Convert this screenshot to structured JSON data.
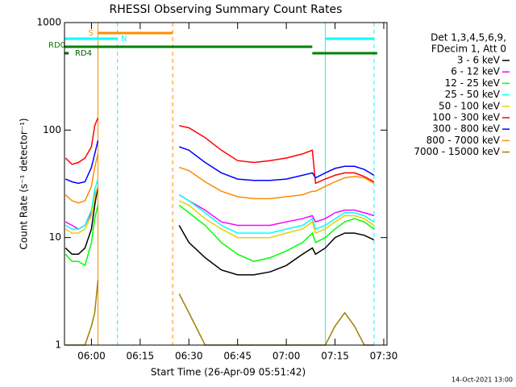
{
  "chart_data": {
    "type": "line",
    "title": "RHESSI Observing Summary Count Rates",
    "x_label": "Start Time (26-Apr-09 05:51:42)",
    "y_label": "Count Rate (s⁻¹ detector⁻¹)",
    "legend_header": [
      "Det 1,3,4,5,6,9,",
      "FDecim 1, Att 0"
    ],
    "footer": "14-Oct-2021 13:00",
    "log_y": true,
    "xlim": [
      "05:51:42",
      "07:31"
    ],
    "xticks": [
      "06:00",
      "06:15",
      "06:30",
      "06:45",
      "07:00",
      "07:15",
      "07:30"
    ],
    "ylim": [
      1,
      1000
    ],
    "yticks": [
      1,
      10,
      100,
      1000
    ],
    "x": [
      "05:52",
      "05:54",
      "05:56",
      "05:58",
      "06:00",
      "06:01",
      "06:02",
      "06:14",
      "06:27",
      "06:30",
      "06:35",
      "06:40",
      "06:45",
      "06:50",
      "06:55",
      "07:00",
      "07:05",
      "07:08",
      "07:09",
      "07:12",
      "07:15",
      "07:18",
      "07:21",
      "07:24",
      "07:27"
    ],
    "series": [
      {
        "name": "3 - 6 keV",
        "color": "#000000",
        "values": [
          8,
          7,
          7,
          8,
          12,
          20,
          30,
          null,
          13,
          9,
          6.5,
          5,
          4.5,
          4.5,
          4.8,
          5.5,
          7,
          8,
          7,
          8,
          10,
          11,
          11,
          10.5,
          9.5
        ]
      },
      {
        "name": "6 - 12 keV",
        "color": "#ff00ff",
        "values": [
          14,
          13,
          12,
          13,
          17,
          25,
          30,
          null,
          25,
          22,
          18,
          14,
          13,
          13,
          13,
          14,
          15,
          16,
          14,
          15,
          17,
          18,
          18,
          17,
          16
        ]
      },
      {
        "name": "12 - 25 keV",
        "color": "#00ff00",
        "values": [
          7,
          6,
          6,
          5.5,
          9,
          15,
          20,
          null,
          20,
          17,
          13,
          9,
          7,
          6,
          6.5,
          7.5,
          9,
          11,
          9,
          10,
          12,
          14,
          15,
          14,
          12
        ]
      },
      {
        "name": "25 - 50 keV",
        "color": "#00ffff",
        "values": [
          13,
          12,
          12,
          13,
          18,
          28,
          35,
          null,
          25,
          22,
          17,
          13,
          11,
          11,
          11,
          12,
          13,
          15,
          12,
          13,
          15,
          17,
          17,
          16,
          14
        ]
      },
      {
        "name": "50 - 100 keV",
        "color": "#e8d000",
        "values": [
          12,
          11,
          11,
          12,
          16,
          24,
          30,
          null,
          22,
          20,
          15,
          12,
          10,
          10,
          10,
          11,
          12,
          14,
          11,
          12,
          14,
          16,
          16,
          15,
          13
        ]
      },
      {
        "name": "100 - 300 keV",
        "color": "#ff0000",
        "values": [
          55,
          48,
          50,
          55,
          70,
          110,
          130,
          null,
          110,
          105,
          85,
          65,
          52,
          50,
          52,
          55,
          60,
          65,
          32,
          35,
          38,
          40,
          40,
          37,
          33
        ]
      },
      {
        "name": "300 - 800 keV",
        "color": "#0000ff",
        "values": [
          35,
          33,
          32,
          33,
          45,
          60,
          80,
          null,
          70,
          65,
          50,
          40,
          35,
          34,
          34,
          35,
          38,
          40,
          36,
          40,
          44,
          46,
          46,
          43,
          38
        ]
      },
      {
        "name": "800 - 7000 keV",
        "color": "#ff8c00",
        "values": [
          25,
          22,
          21,
          22,
          30,
          45,
          60,
          null,
          45,
          42,
          33,
          27,
          24,
          23,
          23,
          24,
          25,
          27,
          27,
          30,
          33,
          36,
          37,
          36,
          32
        ]
      },
      {
        "name": "7000 - 15000 keV",
        "color": "#a08000",
        "values": [
          1,
          1,
          1,
          1,
          1.5,
          2,
          4,
          null,
          3,
          2,
          1,
          1,
          1,
          1,
          1,
          1,
          1,
          1,
          1,
          1,
          1.5,
          2,
          1.5,
          1,
          1
        ]
      }
    ],
    "markers": [
      {
        "time": "05:51:42",
        "color": "#00ffff",
        "dashed": false
      },
      {
        "time": "06:08",
        "color": "#00ffff",
        "dashed": true
      },
      {
        "time": "06:02",
        "color": "#ff8c00",
        "dashed": false
      },
      {
        "time": "06:25",
        "color": "#ff8c00",
        "dashed": true
      },
      {
        "time": "07:12",
        "color": "#00ffff",
        "dashed": false
      },
      {
        "time": "07:27",
        "color": "#00ffff",
        "dashed": true
      }
    ],
    "status_bars": [
      {
        "label": "S",
        "color": "#ff8c00",
        "start": "06:02",
        "end": "06:25"
      },
      {
        "label": "N",
        "color": "#00ffff",
        "start": "05:51:42",
        "end": "06:08"
      },
      {
        "color": "#00ffff",
        "start": "07:12",
        "end": "07:27"
      },
      {
        "label": "RD0",
        "color": "#008000",
        "start": "05:51:42",
        "end": "07:08"
      },
      {
        "color": "#008000",
        "start": "07:08",
        "end": "07:28"
      },
      {
        "label": "RD4",
        "color": "#006400",
        "start": "05:51:42",
        "end": "05:53"
      }
    ]
  }
}
